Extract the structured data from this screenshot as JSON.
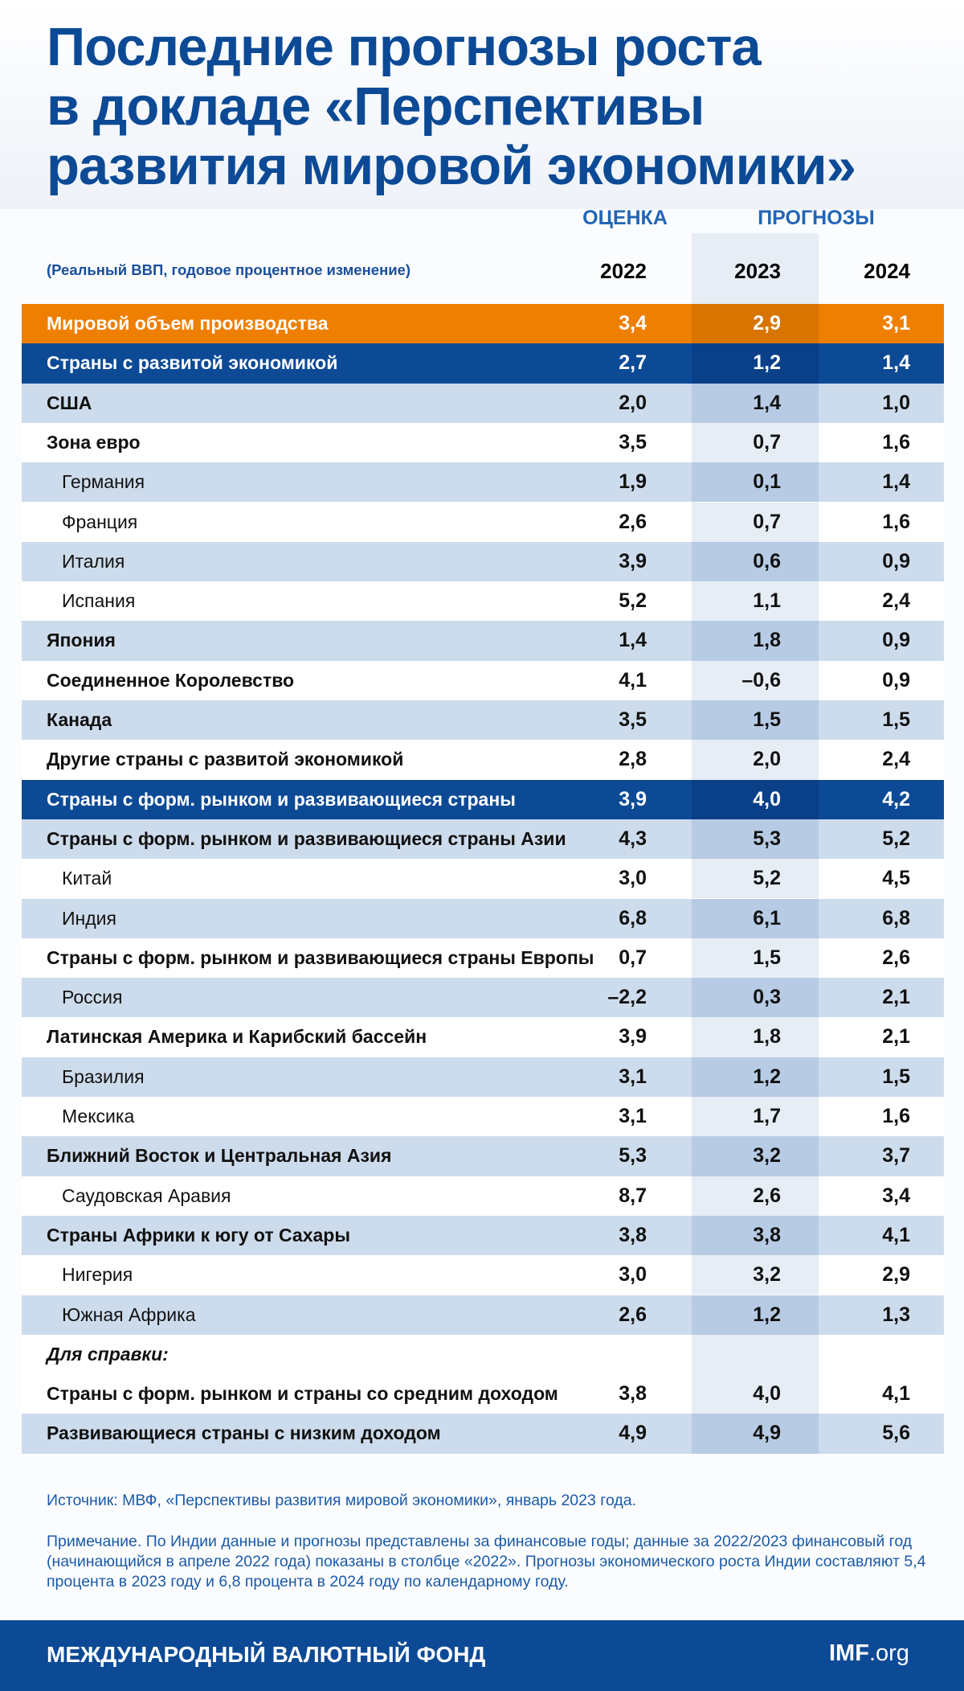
{
  "header": {
    "title_lines": [
      "Последние прогнозы роста",
      "в докладе «Перспективы",
      "развития мировой экономики»"
    ],
    "estimate_label": "ОЦЕНКА",
    "forecast_label": "ПРОГНОЗЫ",
    "subtitle": "(Реальный ВВП, годовое процентное изменение)",
    "years": [
      "2022",
      "2023",
      "2024"
    ]
  },
  "table": {
    "rows": [
      [
        "Мировой объем производства",
        "3,4",
        "2,9",
        "3,1"
      ],
      [
        "Страны с развитой экономикой",
        "2,7",
        "1,2",
        "1,4"
      ],
      [
        "США",
        "2,0",
        "1,4",
        "1,0"
      ],
      [
        "Зона евро",
        "3,5",
        "0,7",
        "1,6"
      ],
      [
        "Германия",
        "1,9",
        "0,1",
        "1,4"
      ],
      [
        "Франция",
        "2,6",
        "0,7",
        "1,6"
      ],
      [
        "Италия",
        "3,9",
        "0,6",
        "0,9"
      ],
      [
        "Испания",
        "5,2",
        "1,1",
        "2,4"
      ],
      [
        "Япония",
        "1,4",
        "1,8",
        "0,9"
      ],
      [
        "Соединенное Королевство",
        "4,1",
        "–0,6",
        "0,9"
      ],
      [
        "Канада",
        "3,5",
        "1,5",
        "1,5"
      ],
      [
        "Другие страны с развитой экономикой",
        "2,8",
        "2,0",
        "2,4"
      ],
      [
        "Страны с форм. рынком и развивающиеся страны",
        "3,9",
        "4,0",
        "4,2"
      ],
      [
        "Страны с форм. рынком и развивающиеся страны Азии",
        "4,3",
        "5,3",
        "5,2"
      ],
      [
        "Китай",
        "3,0",
        "5,2",
        "4,5"
      ],
      [
        "Индия",
        "6,8",
        "6,1",
        "6,8"
      ],
      [
        "Страны с форм. рынком и развивающиеся страны Европы",
        "0,7",
        "1,5",
        "2,6"
      ],
      [
        "Россия",
        "–2,2",
        "0,3",
        "2,1"
      ],
      [
        "Латинская Америка и Карибский бассейн",
        "3,9",
        "1,8",
        "2,1"
      ],
      [
        "Бразилия",
        "3,1",
        "1,2",
        "1,5"
      ],
      [
        "Мексика",
        "3,1",
        "1,7",
        "1,6"
      ],
      [
        "Ближний Восток и Центральная Азия",
        "5,3",
        "3,2",
        "3,7"
      ],
      [
        "Саудовская Аравия",
        "8,7",
        "2,6",
        "3,4"
      ],
      [
        "Страны Африки к югу от Сахары",
        "3,8",
        "3,8",
        "4,1"
      ],
      [
        "Нигерия",
        "3,0",
        "3,2",
        "2,9"
      ],
      [
        "Южная Африка",
        "2,6",
        "1,2",
        "1,3"
      ],
      [
        "Для справки:"
      ],
      [
        "Страны с форм. рынком и страны со средним доходом",
        "3,8",
        "4,0",
        "4,1"
      ],
      [
        "Развивающиеся страны с низким доходом",
        "4,9",
        "4,9",
        "5,6"
      ]
    ]
  },
  "notes": {
    "source": "Источник: МВФ, «Перспективы развития мировой экономики», январь 2023 года.",
    "note": "Примечание. По Индии данные и прогнозы представлены за финансовые годы; данные за 2022/2023 финансовый год (начинающийся в апреле 2022 года) показаны в столбце «2022». Прогнозы экономического роста Индии составляют 5,4 процента в 2023 году и 6,8 процента в 2024 году по календарному году."
  },
  "footer": {
    "organization": "МЕЖДУНАРОДНЫЙ ВАЛЮТНЫЙ ФОНД",
    "site_brand": "IMF",
    "site_suffix": ".org"
  }
}
